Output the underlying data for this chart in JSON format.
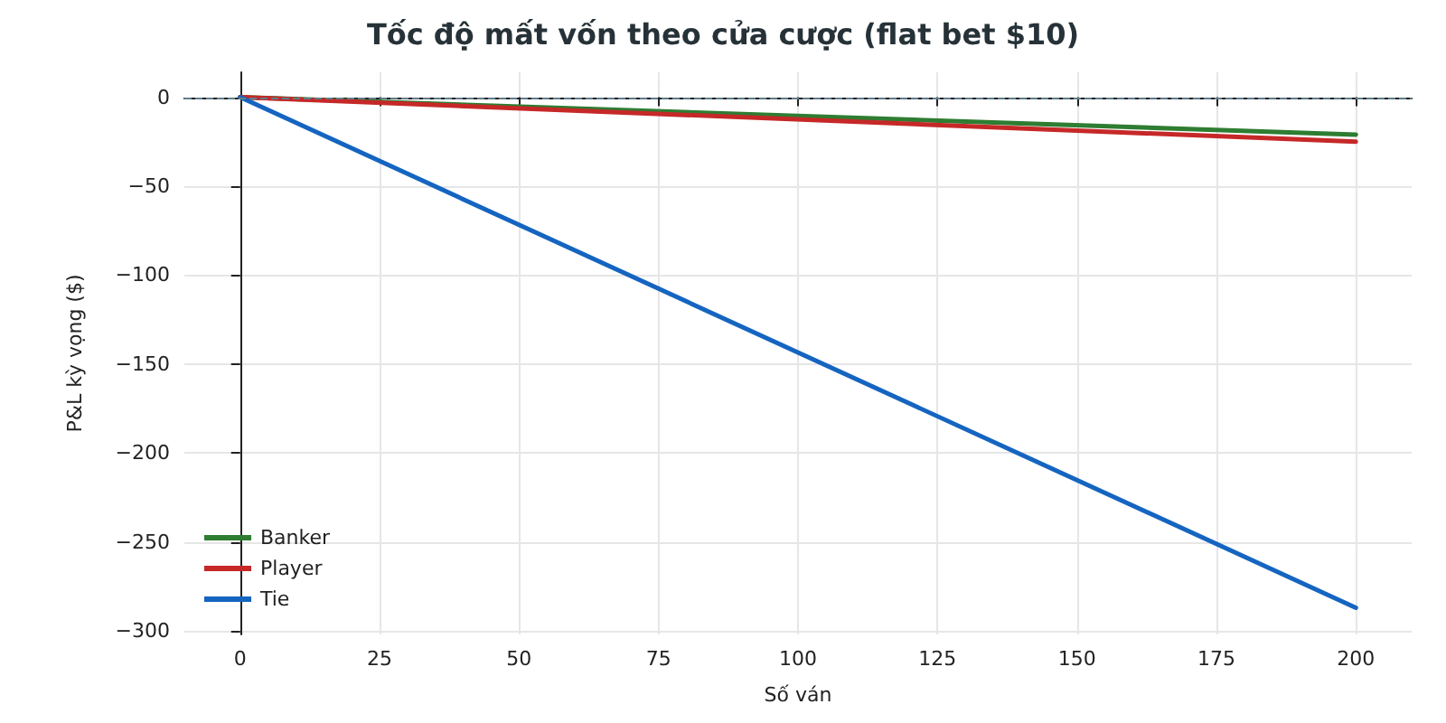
{
  "chart_data": {
    "type": "line",
    "title": "Tốc độ mất vốn theo cửa cược (flat bet $10)",
    "xlabel": "Số ván",
    "ylabel": "P&L kỳ vọng ($)",
    "x": [
      0,
      200
    ],
    "series": [
      {
        "name": "Banker",
        "color": "#2e7d32",
        "values": [
          0,
          -21
        ]
      },
      {
        "name": "Player",
        "color": "#c62828",
        "values": [
          0,
          -25
        ]
      },
      {
        "name": "Tie",
        "color": "#1565c0",
        "values": [
          0,
          -287
        ]
      }
    ],
    "xlim": [
      -10,
      210
    ],
    "xticks": [
      0,
      25,
      50,
      75,
      100,
      125,
      150,
      175,
      200
    ],
    "ylim": [
      -302,
      14
    ],
    "yticks": [
      -300,
      -250,
      -200,
      -150,
      -100,
      -50,
      0
    ],
    "ref_lines": [
      {
        "axis": "y",
        "value": 0,
        "color": "#607d8b",
        "line_style": "dashed"
      }
    ],
    "grid": true,
    "legend": "bottom left",
    "marker": "none",
    "line_style": "solid"
  }
}
